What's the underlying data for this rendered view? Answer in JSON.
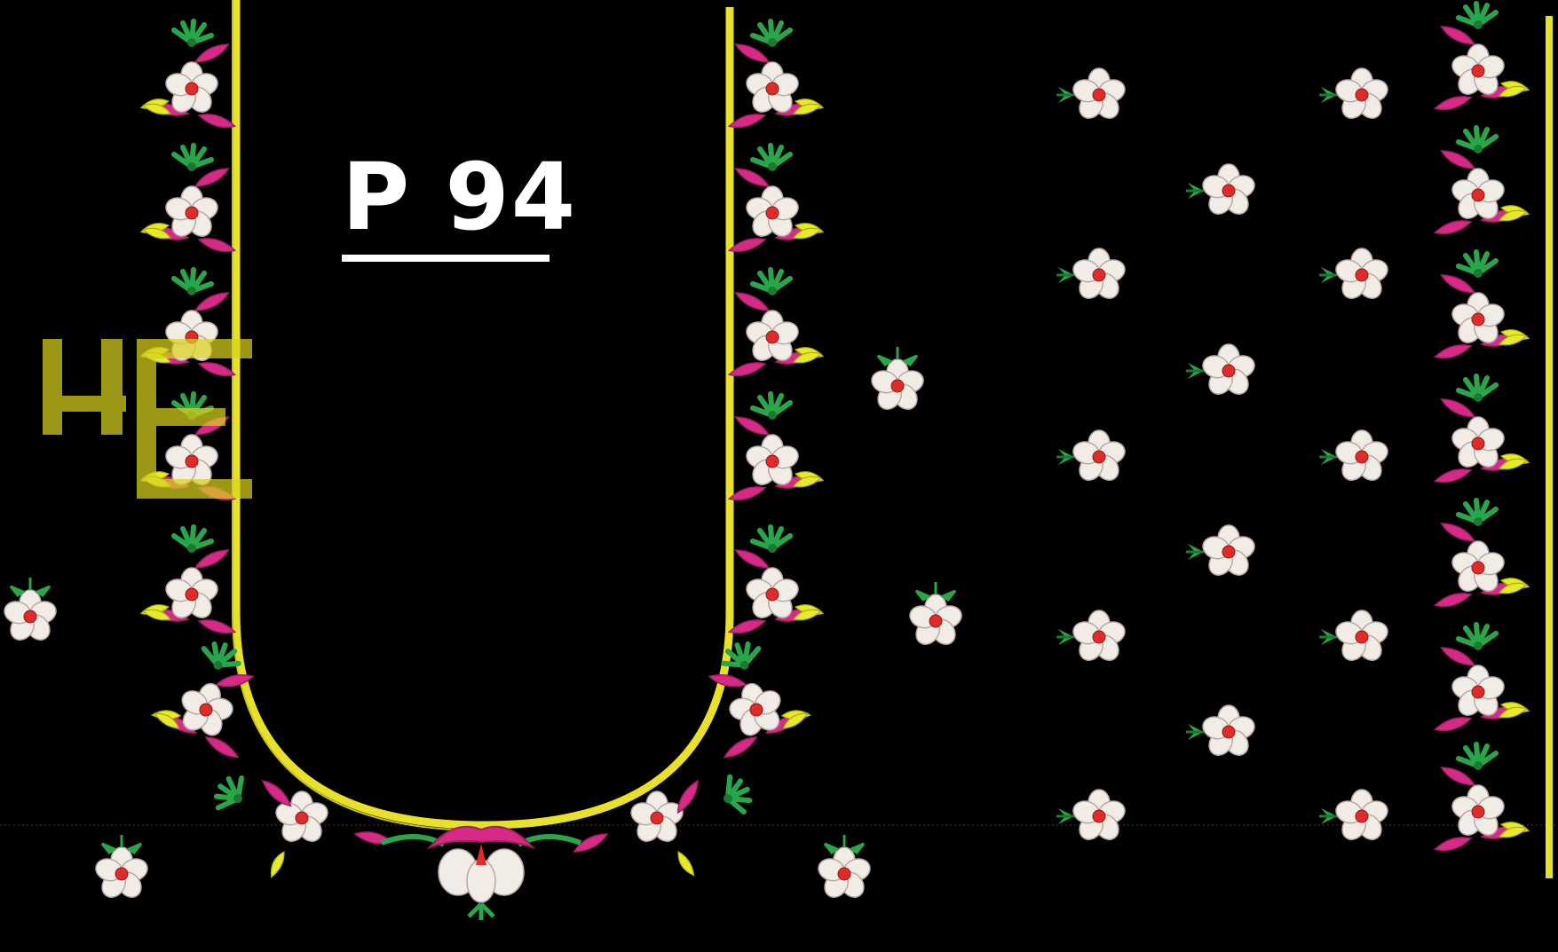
{
  "design": {
    "label": "P 94",
    "watermark_glyph": "HE"
  },
  "colors": {
    "background": "#000000",
    "outline": "#e8e02a",
    "petal": "#f2ece6",
    "petal_shade": "#c8b8b8",
    "center": "#e02b2b",
    "leaf_pink": "#d62a86",
    "leaf_pink_dark": "#9b1f63",
    "leaf_yellow": "#e6ea2a",
    "leaf_green": "#2aa64a",
    "leaf_green_dark": "#1a7a34",
    "label_text": "#ffffff",
    "watermark": "#d8d21e"
  },
  "icons": {
    "flower": "five-petal-flower-icon",
    "leaf": "leaf-icon",
    "bud": "bud-icon"
  }
}
